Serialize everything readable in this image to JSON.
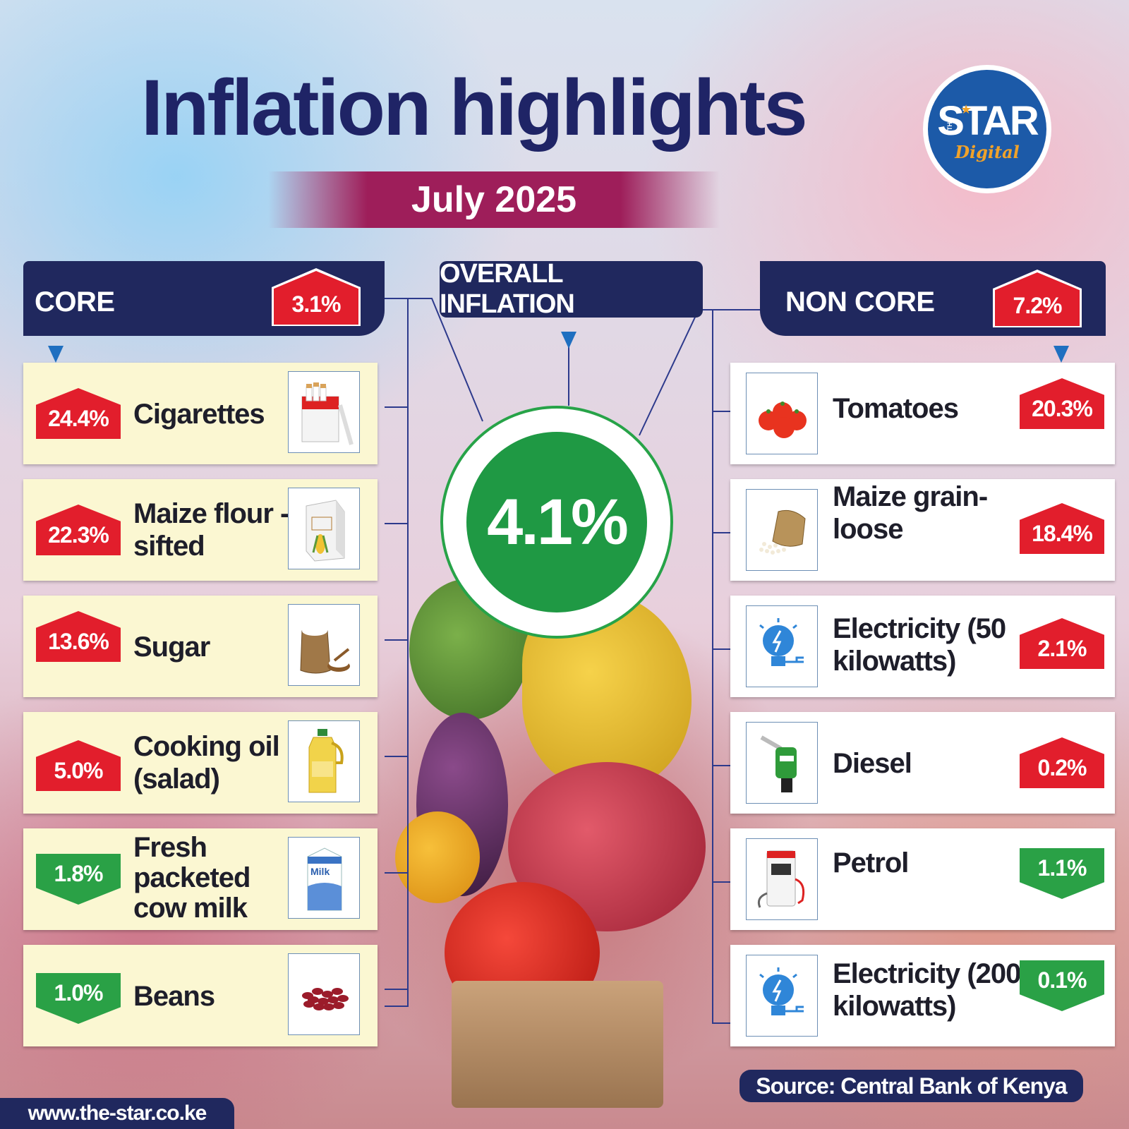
{
  "header": {
    "title": "Inflation highlights",
    "date": "July 2025"
  },
  "logo": {
    "text": "STAR",
    "prefix": "THE",
    "suffix": "Digital",
    "color": "#1c5aa8"
  },
  "overall": {
    "label": "OVERALL INFLATION",
    "value": "4.1%"
  },
  "core": {
    "label": "CORE",
    "value": "3.1%",
    "items": [
      {
        "name": "Cigarettes",
        "value": "24.4%",
        "direction": "up",
        "icon": "cigarette-pack-icon"
      },
      {
        "name": "Maize flour -sifted",
        "value": "22.3%",
        "direction": "up",
        "icon": "flour-bag-icon"
      },
      {
        "name": "Sugar",
        "value": "13.6%",
        "direction": "up",
        "icon": "sugar-sack-icon"
      },
      {
        "name": "Cooking oil (salad)",
        "value": "5.0%",
        "direction": "up",
        "icon": "oil-bottle-icon"
      },
      {
        "name": "Fresh packeted cow milk",
        "value": "1.8%",
        "direction": "down",
        "icon": "milk-carton-icon"
      },
      {
        "name": "Beans",
        "value": "1.0%",
        "direction": "down",
        "icon": "beans-icon"
      }
    ]
  },
  "noncore": {
    "label": "NON CORE",
    "value": "7.2%",
    "items": [
      {
        "name": "Tomatoes",
        "value": "20.3%",
        "direction": "up",
        "icon": "tomatoes-icon"
      },
      {
        "name": "Maize grain-loose",
        "value": "18.4%",
        "direction": "up",
        "icon": "maize-grain-sack-icon"
      },
      {
        "name": "Electricity (50 kilowatts)",
        "value": "2.1%",
        "direction": "up",
        "icon": "lightbulb-icon"
      },
      {
        "name": "Diesel",
        "value": "0.2%",
        "direction": "up",
        "icon": "fuel-nozzle-icon"
      },
      {
        "name": "Petrol",
        "value": "1.1%",
        "direction": "down",
        "icon": "fuel-pump-icon"
      },
      {
        "name": "Electricity (200 kilowatts)",
        "value": "0.1%",
        "direction": "down",
        "icon": "lightbulb-icon"
      }
    ]
  },
  "footer": {
    "source": "Source: Central Bank of Kenya",
    "url": "www.the-star.co.ke"
  },
  "colors": {
    "navy": "#20285e",
    "up": "#e21e2c",
    "down": "#2aa146",
    "date_band": "#9e1e5a",
    "core_card": "#fbf7d2"
  }
}
